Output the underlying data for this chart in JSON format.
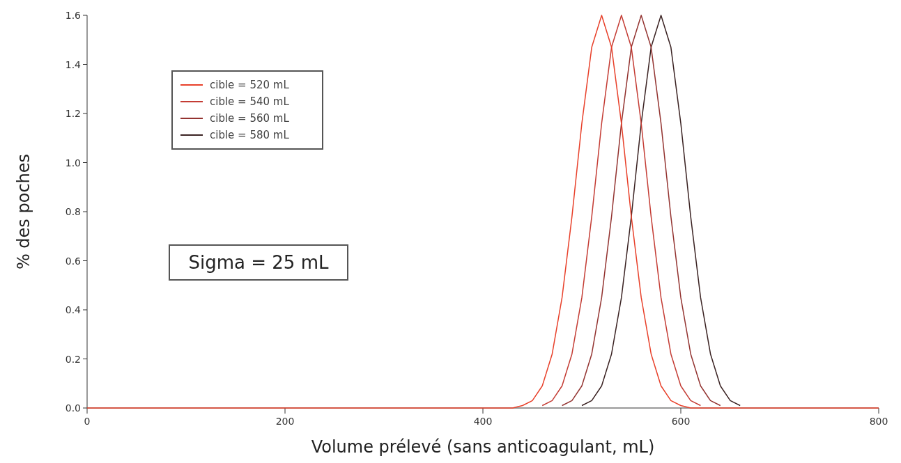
{
  "chart_data": {
    "type": "line",
    "xlabel": "Volume prélevé (sans anticoagulant, mL)",
    "ylabel": "% des poches",
    "x": [
      0,
      400,
      410,
      420,
      430,
      440,
      450,
      460,
      470,
      480,
      490,
      500,
      510,
      520,
      530,
      540,
      550,
      560,
      570,
      580,
      590,
      600,
      610,
      620,
      630,
      640,
      650,
      660,
      670,
      680,
      690,
      700,
      800
    ],
    "xlim": [
      0,
      800
    ],
    "xticks": [
      0,
      200,
      400,
      600,
      800
    ],
    "ylim": [
      0,
      1.6
    ],
    "yticks": [
      {
        "value": 0,
        "label": "0.0"
      },
      {
        "value": 0.2,
        "label": "0.2"
      },
      {
        "value": 0.4,
        "label": "0.4"
      },
      {
        "value": 0.6,
        "label": "0.6"
      },
      {
        "value": 0.8,
        "label": "0.8"
      },
      {
        "value": 1,
        "label": "1.0"
      },
      {
        "value": 1.2,
        "label": "1.2"
      },
      {
        "value": 1.4,
        "label": "1.4"
      },
      {
        "value": 1.6,
        "label": "1.6"
      }
    ],
    "series": [
      {
        "name": "cible = 520 mL",
        "color": "#e8402a",
        "values": [
          0,
          0,
          0,
          0,
          0,
          0.01,
          0.03,
          0.09,
          0.22,
          0.45,
          0.78,
          1.16,
          1.47,
          1.6,
          1.47,
          1.16,
          0.78,
          0.45,
          0.22,
          0.09,
          0.03,
          0.01,
          0,
          0,
          0,
          0,
          0,
          0,
          0,
          0,
          0,
          0,
          0
        ]
      },
      {
        "name": "cible = 540 mL",
        "color": "#c43c34",
        "x": [
          460,
          470,
          480,
          490,
          500,
          510,
          520,
          530,
          540,
          550,
          560,
          570,
          580,
          590,
          600,
          610,
          620
        ],
        "values": [
          0.01,
          0.03,
          0.09,
          0.22,
          0.45,
          0.78,
          1.16,
          1.47,
          1.6,
          1.47,
          1.16,
          0.78,
          0.45,
          0.22,
          0.09,
          0.03,
          0.01
        ]
      },
      {
        "name": "cible = 560 mL",
        "color": "#933330",
        "x": [
          480,
          490,
          500,
          510,
          520,
          530,
          540,
          550,
          560,
          570,
          580,
          590,
          600,
          610,
          620,
          630,
          640
        ],
        "values": [
          0.01,
          0.03,
          0.09,
          0.22,
          0.45,
          0.78,
          1.16,
          1.47,
          1.6,
          1.47,
          1.16,
          0.78,
          0.45,
          0.22,
          0.09,
          0.03,
          0.01
        ]
      },
      {
        "name": "cible = 580 mL",
        "color": "#3a2222",
        "x": [
          500,
          510,
          520,
          530,
          540,
          550,
          560,
          570,
          580,
          590,
          600,
          610,
          620,
          630,
          640,
          650,
          660
        ],
        "values": [
          0.01,
          0.03,
          0.09,
          0.22,
          0.45,
          0.78,
          1.16,
          1.47,
          1.6,
          1.47,
          1.16,
          0.78,
          0.45,
          0.22,
          0.09,
          0.03,
          0.01
        ]
      }
    ],
    "legend": "top left",
    "grid": false,
    "marker": "none",
    "line_style": "solid",
    "annotations": [
      "Sigma = 25 mL"
    ]
  }
}
